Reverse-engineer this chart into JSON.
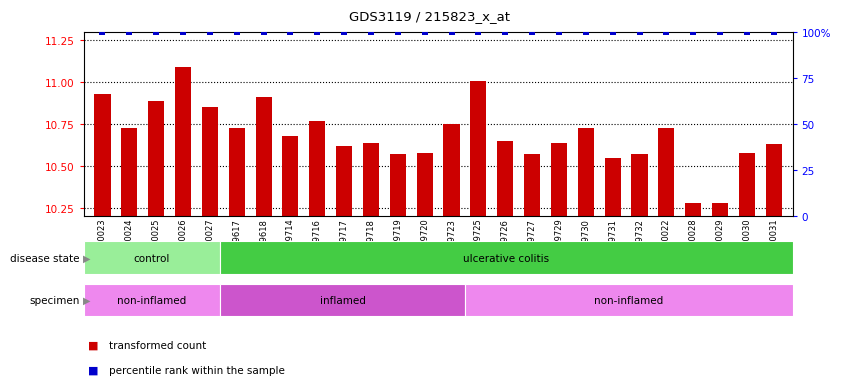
{
  "title": "GDS3119 / 215823_x_at",
  "samples": [
    "GSM240023",
    "GSM240024",
    "GSM240025",
    "GSM240026",
    "GSM240027",
    "GSM239617",
    "GSM239618",
    "GSM239714",
    "GSM239716",
    "GSM239717",
    "GSM239718",
    "GSM239719",
    "GSM239720",
    "GSM239723",
    "GSM239725",
    "GSM239726",
    "GSM239727",
    "GSM239729",
    "GSM239730",
    "GSM239731",
    "GSM239732",
    "GSM240022",
    "GSM240028",
    "GSM240029",
    "GSM240030",
    "GSM240031"
  ],
  "transformed_count": [
    10.93,
    10.73,
    10.89,
    11.09,
    10.85,
    10.73,
    10.91,
    10.68,
    10.77,
    10.62,
    10.64,
    10.57,
    10.58,
    10.75,
    11.01,
    10.65,
    10.57,
    10.64,
    10.73,
    10.55,
    10.57,
    10.73,
    10.28,
    10.28,
    10.58,
    10.63
  ],
  "percentile": [
    100,
    100,
    100,
    100,
    100,
    100,
    100,
    100,
    100,
    100,
    100,
    100,
    100,
    100,
    100,
    100,
    100,
    100,
    100,
    100,
    100,
    100,
    100,
    100,
    100,
    100
  ],
  "ylim_left": [
    10.2,
    11.3
  ],
  "ylim_right": [
    0,
    100
  ],
  "yticks_left": [
    10.25,
    10.5,
    10.75,
    11.0,
    11.25
  ],
  "yticks_right": [
    0,
    25,
    50,
    75,
    100
  ],
  "bar_color": "#cc0000",
  "dot_color": "#0000cc",
  "disease_state": {
    "groups": [
      {
        "label": "control",
        "start": 0,
        "end": 4,
        "color": "#99ee99"
      },
      {
        "label": "ulcerative colitis",
        "start": 5,
        "end": 25,
        "color": "#44cc44"
      }
    ],
    "row_label": "disease state"
  },
  "specimen": {
    "groups": [
      {
        "label": "non-inflamed",
        "start": 0,
        "end": 4,
        "color": "#ee88ee"
      },
      {
        "label": "inflamed",
        "start": 5,
        "end": 13,
        "color": "#cc55cc"
      },
      {
        "label": "non-inflamed",
        "start": 14,
        "end": 25,
        "color": "#ee88ee"
      }
    ],
    "row_label": "specimen"
  },
  "legend": [
    {
      "color": "#cc0000",
      "label": "transformed count"
    },
    {
      "color": "#0000cc",
      "label": "percentile rank within the sample"
    }
  ],
  "plot_bg": "#ffffff",
  "fig_bg": "#ffffff"
}
